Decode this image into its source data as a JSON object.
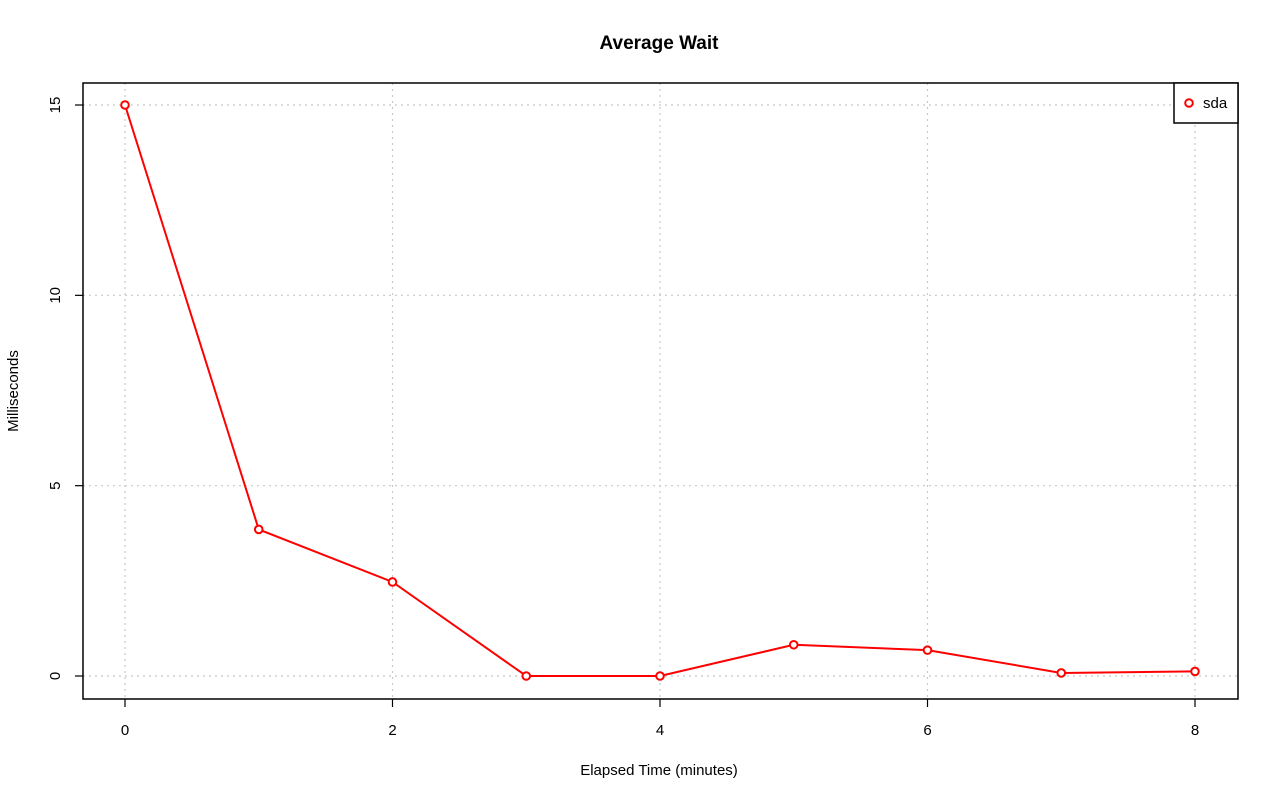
{
  "chart_data": {
    "type": "line",
    "title": "Average Wait",
    "xlabel": "Elapsed Time (minutes)",
    "ylabel": "Milliseconds",
    "xlim": [
      0,
      8
    ],
    "ylim": [
      0,
      15
    ],
    "x_ticks": [
      "0",
      "2",
      "4",
      "6",
      "8"
    ],
    "y_ticks": [
      "0",
      "5",
      "10",
      "15"
    ],
    "grid": true,
    "legend_position": "top-right",
    "series": [
      {
        "name": "sda",
        "color": "#ff0000",
        "marker": "open-circle",
        "x": [
          0,
          1,
          2,
          3,
          4,
          5,
          6,
          7,
          8
        ],
        "y": [
          15.0,
          3.85,
          2.47,
          0.0,
          0.0,
          0.82,
          0.68,
          0.08,
          0.12
        ]
      }
    ]
  }
}
